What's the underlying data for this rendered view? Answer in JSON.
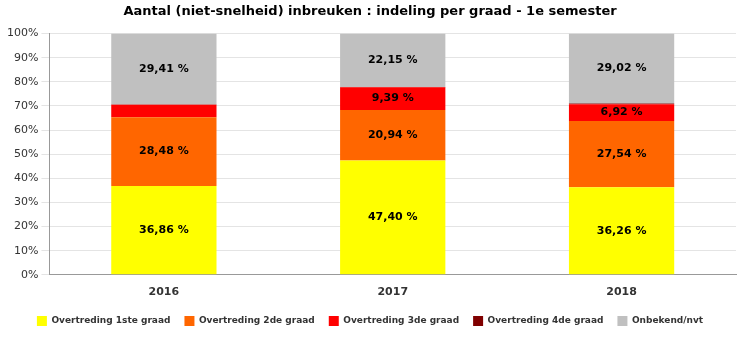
{
  "chart_data": {
    "type": "bar",
    "title": "Aantal (niet-snelheid) inbreuken : indeling per graad - 1e semester",
    "categories": [
      "2016",
      "2017",
      "2018"
    ],
    "stacked": true,
    "data_labels": true,
    "grid": true,
    "legend": "bottom",
    "ylim": [
      0,
      100
    ],
    "yticks": [
      {
        "value": 0,
        "label": "0%"
      },
      {
        "value": 10,
        "label": "10%"
      },
      {
        "value": 20,
        "label": "20%"
      },
      {
        "value": 30,
        "label": "30%"
      },
      {
        "value": 40,
        "label": "40%"
      },
      {
        "value": 50,
        "label": "50%"
      },
      {
        "value": 60,
        "label": "60%"
      },
      {
        "value": 70,
        "label": "70%"
      },
      {
        "value": 80,
        "label": "80%"
      },
      {
        "value": 90,
        "label": "90%"
      },
      {
        "value": 100,
        "label": "100%"
      }
    ],
    "series": [
      {
        "name": "Overtreding 1ste graad",
        "color": "#ffff00",
        "values": [
          36.86,
          47.4,
          36.26
        ],
        "value_labels": [
          "36,86 %",
          "47,40 %",
          "36,26 %"
        ]
      },
      {
        "name": "Overtreding 2de graad",
        "color": "#ff6600",
        "values": [
          28.48,
          20.94,
          27.54
        ],
        "value_labels": [
          "28,48 %",
          "20,94 %",
          "27,54 %"
        ]
      },
      {
        "name": "Overtreding 3de graad",
        "color": "#ff0000",
        "values": [
          5.2,
          9.39,
          6.92
        ],
        "value_labels": [
          null,
          "9,39 %",
          "6,92 %"
        ]
      },
      {
        "name": "Overtreding 4de graad",
        "color": "#800000",
        "values": [
          0.05,
          0.12,
          0.26
        ],
        "value_labels": [
          null,
          null,
          null
        ]
      },
      {
        "name": "Onbekend/nvt",
        "color": "#c0c0c0",
        "values": [
          29.41,
          22.15,
          29.02
        ],
        "value_labels": [
          "29,41 %",
          "22,15 %",
          "29,02 %"
        ]
      }
    ]
  }
}
